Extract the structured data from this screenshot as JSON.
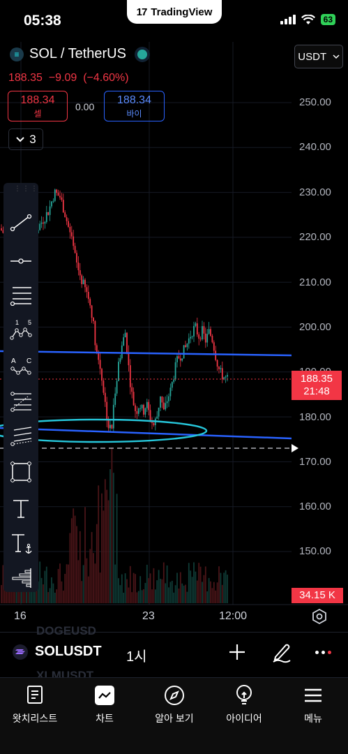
{
  "status_bar": {
    "time": "05:38",
    "app_pill": "TradingView",
    "battery": "63"
  },
  "header": {
    "symbol": "SOL / TetherUS",
    "last_price": "188.35",
    "change": "−9.09",
    "change_pct": "(−4.60%)",
    "sell": {
      "price": "188.34",
      "label": "셀"
    },
    "spread": "0.00",
    "buy": {
      "price": "188.34",
      "label": "바이"
    },
    "indicators_count": "3",
    "currency": "USDT"
  },
  "price_axis": {
    "labels": [
      "250.00",
      "240.00",
      "230.00",
      "220.00",
      "210.00",
      "200.00",
      "190.00",
      "180.00",
      "170.00",
      "160.00",
      "150.00"
    ],
    "current_price": "188.35",
    "countdown": "21:48",
    "volume": "34.15 K"
  },
  "time_axis": {
    "labels": [
      "16",
      "23",
      "12:00"
    ]
  },
  "toolbar": {
    "tools": [
      "trend-line-icon",
      "horizontal-ray-icon",
      "parallel-channel-icon",
      "xabcd-pattern-icon",
      "abcd-pattern-icon",
      "fib-retracement-icon",
      "fib-channel-icon",
      "rectangle-icon",
      "text-icon",
      "anchored-text-icon",
      "volume-profile-icon"
    ]
  },
  "symbol_bar": {
    "ghost_above": "DOGEUSD",
    "ghost_below": "XLMUSDT",
    "symbol": "SOLUSDT",
    "interval": "1시"
  },
  "nav": {
    "items": [
      {
        "label": "왓치리스트",
        "icon": "watchlist-icon"
      },
      {
        "label": "차트",
        "icon": "chart-icon"
      },
      {
        "label": "알아 보기",
        "icon": "compass-icon"
      },
      {
        "label": "아이디어",
        "icon": "lightbulb-icon"
      },
      {
        "label": "메뉴",
        "icon": "menu-icon"
      }
    ]
  },
  "colors": {
    "up": "#26a69a",
    "down": "#f23645",
    "drawing_blue": "#2962ff",
    "drawing_cyan": "#26c6da"
  }
}
